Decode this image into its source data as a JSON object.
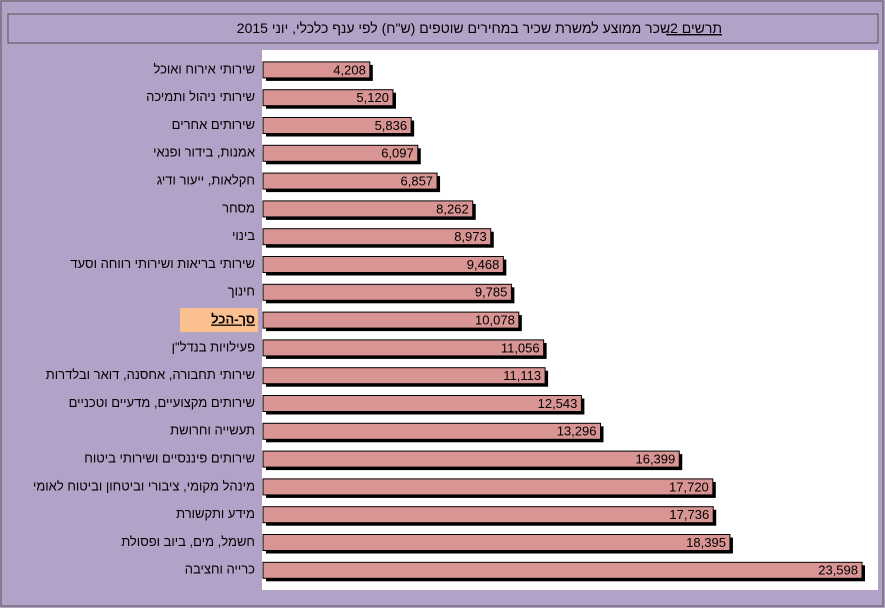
{
  "chart_data": {
    "type": "bar",
    "orientation": "horizontal",
    "title_prefix": "תרשים 2.",
    "title": "שכר ממוצע למשרת שכיר במחירים שוטפים (ש\"ח) לפי ענף כלכלי, יוני 2015",
    "categories": [
      "שירותי אירוח ואוכל",
      "שירותי ניהול ותמיכה",
      "שירותים אחרים",
      "אמנות, בידור ופנאי",
      "חקלאות, ייעור ודיג",
      "מסחר",
      "בינוי",
      "שירותי בריאות ושירותי  רווחה וסעד",
      "חינוך",
      "סך-הכל",
      "פעילויות בנדל\"ן",
      " שירותי תחבורה, אחסנה, דואר ובלדרות",
      "שירותים מקצועיים, מדעיים וטכניים",
      "תעשייה וחרושת",
      "שירותים פיננסיים ושירותי ביטוח",
      "מינהל מקומי, ציבורי וביטחון וביטוח לאומי",
      "מידע ותקשורת",
      "חשמל, מים, ביוב ופסולת",
      "כרייה וחציבה"
    ],
    "values": [
      4208,
      5120,
      5836,
      6097,
      6857,
      8262,
      8973,
      9468,
      9785,
      10078,
      11056,
      11113,
      12543,
      13296,
      16399,
      17720,
      17736,
      18395,
      23598
    ],
    "value_labels": [
      "4,208",
      "5,120",
      "5,836",
      "6,097",
      "6,857",
      "8,262",
      "8,973",
      "9,468",
      "9,785",
      "10,078",
      "11,056",
      "11,113",
      "12,543",
      "13,296",
      "16,399",
      "17,720",
      "17,736",
      "18,395",
      "23,598"
    ],
    "color": "#d99594",
    "highlight_index": 9,
    "highlight_color": "#fac090"
  }
}
